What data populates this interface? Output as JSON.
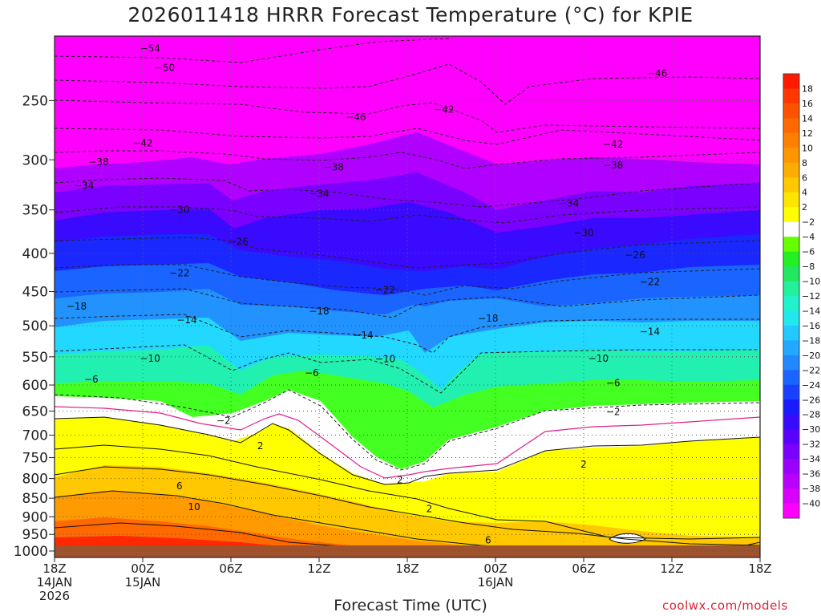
{
  "chart_data": {
    "type": "heatmap",
    "title": "2026011418 HRRR Forecast Temperature (°C) for KPIE",
    "xlabel": "Forecast Time (UTC)",
    "ylabel": "",
    "credit": "coolwx.com/models",
    "y_scale": "log-pressure, inverted",
    "grid": true,
    "y_ticks": [
      "250",
      "300",
      "350",
      "400",
      "450",
      "500",
      "550",
      "600",
      "650",
      "700",
      "750",
      "800",
      "850",
      "900",
      "950",
      "1000"
    ],
    "x_ticks": [
      {
        "hour": 0,
        "lines": [
          "18Z",
          "14JAN",
          "2026"
        ]
      },
      {
        "hour": 6,
        "lines": [
          "00Z",
          "15JAN"
        ]
      },
      {
        "hour": 12,
        "lines": [
          "06Z"
        ]
      },
      {
        "hour": 18,
        "lines": [
          "12Z"
        ]
      },
      {
        "hour": 24,
        "lines": [
          "18Z"
        ]
      },
      {
        "hour": 30,
        "lines": [
          "00Z",
          "16JAN"
        ]
      },
      {
        "hour": 36,
        "lines": [
          "06Z"
        ]
      },
      {
        "hour": 42,
        "lines": [
          "12Z"
        ]
      },
      {
        "hour": 48,
        "lines": [
          "18Z"
        ]
      }
    ],
    "xlim": [
      0,
      48
    ],
    "ylim": [
      1020,
      205
    ],
    "colorbar": {
      "levels": [
        "18",
        "16",
        "14",
        "12",
        "10",
        "8",
        "6",
        "4",
        "2",
        "-2",
        "-4",
        "-6",
        "-8",
        "-10",
        "-12",
        "-14",
        "-16",
        "-18",
        "-20",
        "-22",
        "-24",
        "-26",
        "-28",
        "-30",
        "-32",
        "-34",
        "-36",
        "-38",
        "-40"
      ],
      "colors": [
        "#ff1a00",
        "#ff3800",
        "#ff5200",
        "#ff6a00",
        "#ff8000",
        "#ff9600",
        "#ffac00",
        "#ffc800",
        "#ffe400",
        "#ffff00",
        "#ffffff",
        "#66ff00",
        "#22f022",
        "#22e860",
        "#22f09a",
        "#22f2cc",
        "#22e8ee",
        "#22c8ff",
        "#22a8ff",
        "#2288ff",
        "#1a64ff",
        "#1a40ff",
        "#1a1aff",
        "#3a0aff",
        "#5a00ff",
        "#7a00ff",
        "#9a00ff",
        "#ba00ff",
        "#da00ff",
        "#ff00ff"
      ]
    },
    "contour_labels": [
      {
        "v": "-54",
        "h": 6.5,
        "p": 213
      },
      {
        "v": "-50",
        "h": 7.5,
        "p": 226
      },
      {
        "v": "-46",
        "h": 41,
        "p": 230
      },
      {
        "v": "-46",
        "h": 20.5,
        "p": 263
      },
      {
        "v": "-42",
        "h": 26.5,
        "p": 257
      },
      {
        "v": "-42",
        "h": 6,
        "p": 285
      },
      {
        "v": "-42",
        "h": 38,
        "p": 286
      },
      {
        "v": "-38",
        "h": 3,
        "p": 302
      },
      {
        "v": "-38",
        "h": 19,
        "p": 307
      },
      {
        "v": "-38",
        "h": 38,
        "p": 305
      },
      {
        "v": "-34",
        "h": 2,
        "p": 325
      },
      {
        "v": "-34",
        "h": 18,
        "p": 333
      },
      {
        "v": "-34",
        "h": 35,
        "p": 343
      },
      {
        "v": "-30",
        "h": 8.5,
        "p": 350
      },
      {
        "v": "-30",
        "h": 36,
        "p": 376
      },
      {
        "v": "-26",
        "h": 12.5,
        "p": 386
      },
      {
        "v": "-26",
        "h": 39.5,
        "p": 402
      },
      {
        "v": "-22",
        "h": 8.5,
        "p": 425
      },
      {
        "v": "-22",
        "h": 22.5,
        "p": 448
      },
      {
        "v": "-22",
        "h": 40.5,
        "p": 437
      },
      {
        "v": "-18",
        "h": 1.5,
        "p": 471
      },
      {
        "v": "-18",
        "h": 18,
        "p": 478
      },
      {
        "v": "-18",
        "h": 29.5,
        "p": 489
      },
      {
        "v": "-14",
        "h": 9,
        "p": 491
      },
      {
        "v": "-14",
        "h": 21,
        "p": 515
      },
      {
        "v": "-14",
        "h": 40.5,
        "p": 509
      },
      {
        "v": "-10",
        "h": 6.5,
        "p": 553
      },
      {
        "v": "-10",
        "h": 22.5,
        "p": 554
      },
      {
        "v": "-10",
        "h": 37,
        "p": 553
      },
      {
        "v": "-6",
        "h": 2.5,
        "p": 590
      },
      {
        "v": "-6",
        "h": 17.5,
        "p": 578
      },
      {
        "v": "-6",
        "h": 38,
        "p": 596
      },
      {
        "v": "-2",
        "h": 11.5,
        "p": 670
      },
      {
        "v": "-2",
        "h": 38,
        "p": 652
      },
      {
        "v": "2",
        "h": 14,
        "p": 724
      },
      {
        "v": "2",
        "h": 23.5,
        "p": 804
      },
      {
        "v": "2",
        "h": 36,
        "p": 766
      },
      {
        "v": "2",
        "h": 25.5,
        "p": 879
      },
      {
        "v": "6",
        "h": 8.5,
        "p": 819
      },
      {
        "v": "6",
        "h": 29.5,
        "p": 967
      },
      {
        "v": "10",
        "h": 9.5,
        "p": 873
      }
    ]
  }
}
